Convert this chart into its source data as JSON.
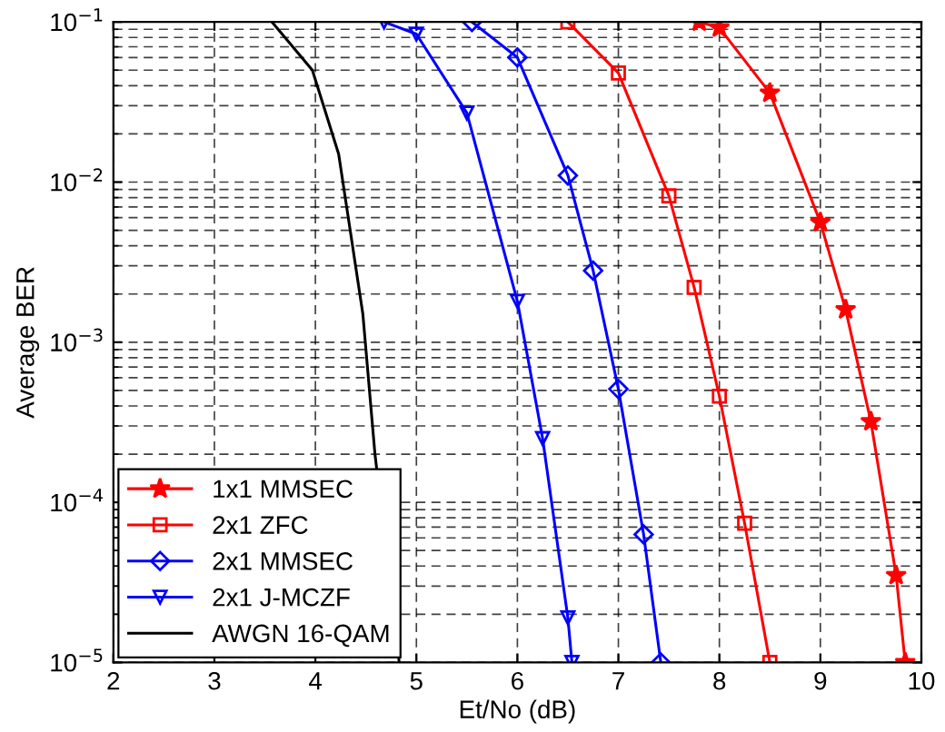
{
  "chart_data": {
    "type": "line",
    "xlabel": "Et/No (dB)",
    "ylabel": "Average BER",
    "log": "y",
    "grid": true,
    "legend": "bottom left",
    "xlim": [
      2,
      10
    ],
    "xticks": [
      2,
      3,
      4,
      5,
      6,
      7,
      8,
      9,
      10
    ],
    "ylim": [
      1e-05,
      0.1
    ],
    "yticks": [
      {
        "value": 1e-05,
        "label": "10$^{−5}$"
      },
      {
        "value": 0.0001,
        "label": "10$^{−4}$"
      },
      {
        "value": 0.001,
        "label": "10$^{−3}$"
      },
      {
        "value": 0.01,
        "label": "10$^{−2}$"
      },
      {
        "value": 0.1,
        "label": "10$^{−1}$"
      }
    ],
    "series": [
      {
        "name": "1x1 MMSEC",
        "color": "#ff0000",
        "marker": "star",
        "x": [
          7.8,
          8,
          8.5,
          9,
          9.25,
          9.5,
          9.75,
          9.84
        ],
        "values": [
          0.1,
          0.092,
          0.036,
          0.0056,
          0.0016,
          0.00032,
          3.5e-05,
          1e-05
        ]
      },
      {
        "name": "2x1 ZFC",
        "color": "#ff0000",
        "marker": "square",
        "x": [
          6.5,
          7,
          7.5,
          7.75,
          8,
          8.25,
          8.5
        ],
        "values": [
          0.1,
          0.048,
          0.0082,
          0.0022,
          0.00046,
          7.4e-05,
          1e-05
        ]
      },
      {
        "name": "2x1 MMSEC",
        "color": "#0000ff",
        "marker": "diamond",
        "x": [
          5.55,
          6,
          6.5,
          6.75,
          7,
          7.25,
          7.42
        ],
        "values": [
          0.1,
          0.06,
          0.011,
          0.0028,
          0.00051,
          6.3e-05,
          1e-05
        ]
      },
      {
        "name": "2x1 J-MCZF",
        "color": "#0000ff",
        "marker": "triangle",
        "x": [
          4.68,
          5,
          5.5,
          6,
          6.25,
          6.5,
          6.54
        ],
        "values": [
          0.1,
          0.084,
          0.027,
          0.0018,
          0.00025,
          1.9e-05,
          1e-05
        ]
      },
      {
        "name": "AWGN 16-QAM",
        "color": "#000000",
        "marker": "none",
        "x": [
          3.57,
          3.97,
          4.23,
          4.47,
          4.59,
          4.83
        ],
        "values": [
          0.1,
          0.05,
          0.015,
          0.0015,
          0.0002,
          1e-05
        ]
      }
    ]
  }
}
